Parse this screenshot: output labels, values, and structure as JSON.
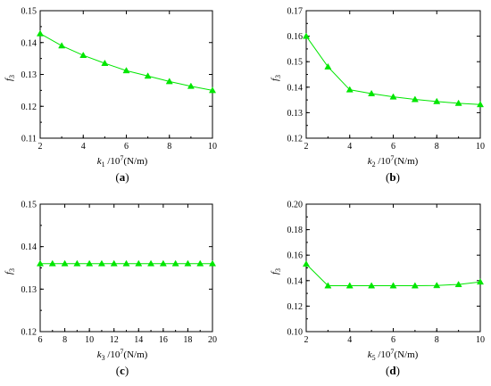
{
  "panels": [
    {
      "caption": "(a)",
      "ylabel": {
        "sym": "f",
        "sub": "3"
      },
      "xlabel": {
        "sym": "k",
        "sub": "1",
        "mid": " /10",
        "sup": "7",
        "unit": "(N/m)"
      },
      "chart_data": {
        "type": "line",
        "series_color": "#00e600",
        "marker": "triangle",
        "x": [
          2,
          3,
          4,
          5,
          6,
          7,
          8,
          9,
          10
        ],
        "y": [
          0.1428,
          0.139,
          0.136,
          0.1335,
          0.1312,
          0.1295,
          0.1278,
          0.1263,
          0.125
        ],
        "xlim": [
          2,
          10
        ],
        "ylim": [
          0.11,
          0.15
        ],
        "xticks": [
          "2",
          "4",
          "6",
          "8",
          "10"
        ],
        "yticks": [
          "0.11",
          "0.12",
          "0.13",
          "0.14",
          "0.15"
        ],
        "grid": false
      }
    },
    {
      "caption": "(b)",
      "ylabel": {
        "sym": "f",
        "sub": "3"
      },
      "xlabel": {
        "sym": "k",
        "sub": "2",
        "mid": " /10",
        "sup": "7",
        "unit": "(N/m)"
      },
      "chart_data": {
        "type": "line",
        "series_color": "#00e600",
        "marker": "triangle",
        "x": [
          2,
          3,
          4,
          5,
          6,
          7,
          8,
          9,
          10
        ],
        "y": [
          0.16,
          0.148,
          0.139,
          0.1375,
          0.1362,
          0.1352,
          0.1344,
          0.1337,
          0.1332
        ],
        "xlim": [
          2,
          10
        ],
        "ylim": [
          0.12,
          0.17
        ],
        "xticks": [
          "2",
          "4",
          "6",
          "8",
          "10"
        ],
        "yticks": [
          "0.12",
          "0.13",
          "0.14",
          "0.15",
          "0.16",
          "0.17"
        ],
        "grid": false
      }
    },
    {
      "caption": "(c)",
      "ylabel": {
        "sym": "f",
        "sub": "3"
      },
      "xlabel": {
        "sym": "k",
        "sub": "3",
        "mid": " /10",
        "sup": "7",
        "unit": "(N/m)"
      },
      "chart_data": {
        "type": "line",
        "series_color": "#00e600",
        "marker": "triangle",
        "x": [
          6,
          7,
          8,
          9,
          10,
          11,
          12,
          13,
          14,
          15,
          16,
          17,
          18,
          19,
          20
        ],
        "y": [
          0.136,
          0.136,
          0.136,
          0.136,
          0.136,
          0.136,
          0.136,
          0.136,
          0.136,
          0.136,
          0.136,
          0.136,
          0.136,
          0.136,
          0.136
        ],
        "xlim": [
          6,
          20
        ],
        "ylim": [
          0.12,
          0.15
        ],
        "xticks": [
          "6",
          "8",
          "10",
          "12",
          "14",
          "16",
          "18",
          "20"
        ],
        "yticks": [
          "0.12",
          "0.13",
          "0.14",
          "0.15"
        ],
        "grid": false
      }
    },
    {
      "caption": "(d)",
      "ylabel": {
        "sym": "f",
        "sub": "3"
      },
      "xlabel": {
        "sym": "k",
        "sub": "5",
        "mid": " /10",
        "sup": "7",
        "unit": "(N/m)"
      },
      "chart_data": {
        "type": "line",
        "series_color": "#00e600",
        "marker": "triangle",
        "x": [
          2,
          3,
          4,
          5,
          6,
          7,
          8,
          9,
          10
        ],
        "y": [
          0.153,
          0.136,
          0.136,
          0.136,
          0.136,
          0.136,
          0.1362,
          0.137,
          0.139
        ],
        "xlim": [
          2,
          10
        ],
        "ylim": [
          0.1,
          0.2
        ],
        "xticks": [
          "2",
          "4",
          "6",
          "8",
          "10"
        ],
        "yticks": [
          "0.10",
          "0.12",
          "0.14",
          "0.16",
          "0.18",
          "0.20"
        ],
        "grid": false
      }
    }
  ]
}
